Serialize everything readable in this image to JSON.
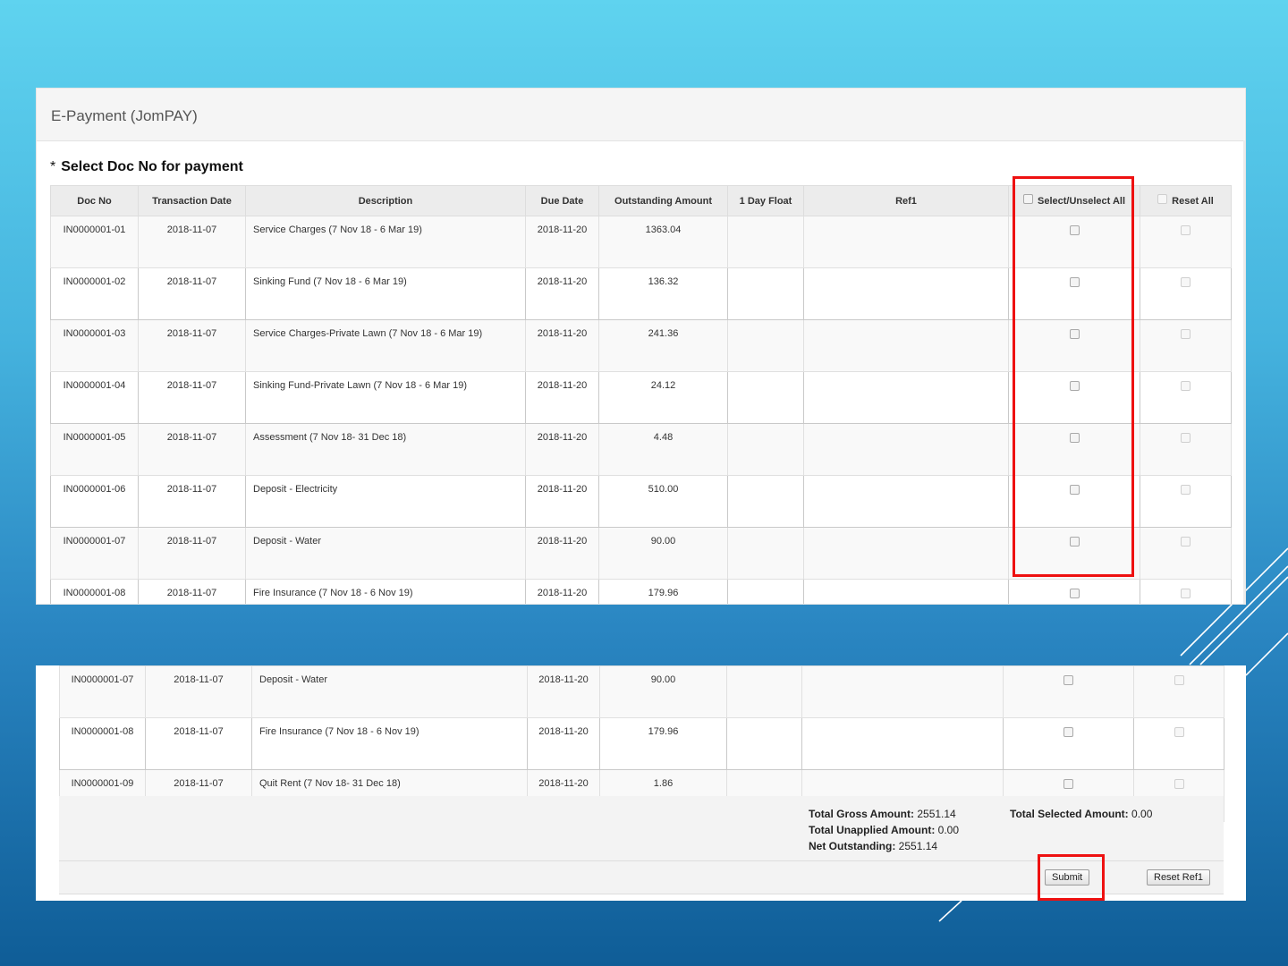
{
  "window": {
    "title": "E-Payment (JomPAY)"
  },
  "section": {
    "asterisk": "*",
    "title": "Select Doc No for payment"
  },
  "table": {
    "headers": {
      "doc_no": "Doc No",
      "transaction_date": "Transaction Date",
      "description": "Description",
      "due_date": "Due Date",
      "outstanding_amount": "Outstanding Amount",
      "day_float": "1 Day Float",
      "ref1": "Ref1",
      "select_all": "Select/Unselect All",
      "reset_all": "Reset All"
    },
    "rows": [
      {
        "doc_no": "IN0000001-01",
        "tdate": "2018-11-07",
        "desc": "Service Charges (7 Nov 18 - 6 Mar 19)",
        "due": "2018-11-20",
        "amount": "1363.04"
      },
      {
        "doc_no": "IN0000001-02",
        "tdate": "2018-11-07",
        "desc": "Sinking Fund (7 Nov 18 - 6 Mar 19)",
        "due": "2018-11-20",
        "amount": "136.32"
      },
      {
        "doc_no": "IN0000001-03",
        "tdate": "2018-11-07",
        "desc": "Service Charges-Private Lawn (7 Nov 18 - 6 Mar 19)",
        "due": "2018-11-20",
        "amount": "241.36"
      },
      {
        "doc_no": "IN0000001-04",
        "tdate": "2018-11-07",
        "desc": "Sinking Fund-Private Lawn (7 Nov 18 - 6 Mar 19)",
        "due": "2018-11-20",
        "amount": "24.12"
      },
      {
        "doc_no": "IN0000001-05",
        "tdate": "2018-11-07",
        "desc": "Assessment (7 Nov 18- 31 Dec 18)",
        "due": "2018-11-20",
        "amount": "4.48"
      },
      {
        "doc_no": "IN0000001-06",
        "tdate": "2018-11-07",
        "desc": "Deposit - Electricity",
        "due": "2018-11-20",
        "amount": "510.00"
      },
      {
        "doc_no": "IN0000001-07",
        "tdate": "2018-11-07",
        "desc": "Deposit - Water",
        "due": "2018-11-20",
        "amount": "90.00"
      },
      {
        "doc_no": "IN0000001-08",
        "tdate": "2018-11-07",
        "desc": "Fire Insurance (7 Nov 18 - 6 Nov 19)",
        "due": "2018-11-20",
        "amount": "179.96"
      },
      {
        "doc_no": "IN0000001-09",
        "tdate": "2018-11-07",
        "desc": "Quit Rent (7 Nov 18- 31 Dec 18)",
        "due": "2018-11-20",
        "amount": "1.86"
      }
    ]
  },
  "totals": {
    "gross_label": "Total Gross Amount:",
    "gross_value": "2551.14",
    "unapplied_label": "Total Unapplied Amount:",
    "unapplied_value": "0.00",
    "net_label": "Net Outstanding:",
    "net_value": "2551.14",
    "selected_label": "Total Selected Amount:",
    "selected_value": "0.00"
  },
  "actions": {
    "submit_label": "Submit",
    "reset_ref1_label": "Reset Ref1"
  },
  "colors": {
    "highlight": "#ee1111",
    "bg_top": "#5fd3ef",
    "bg_bottom": "#0f5d97"
  }
}
